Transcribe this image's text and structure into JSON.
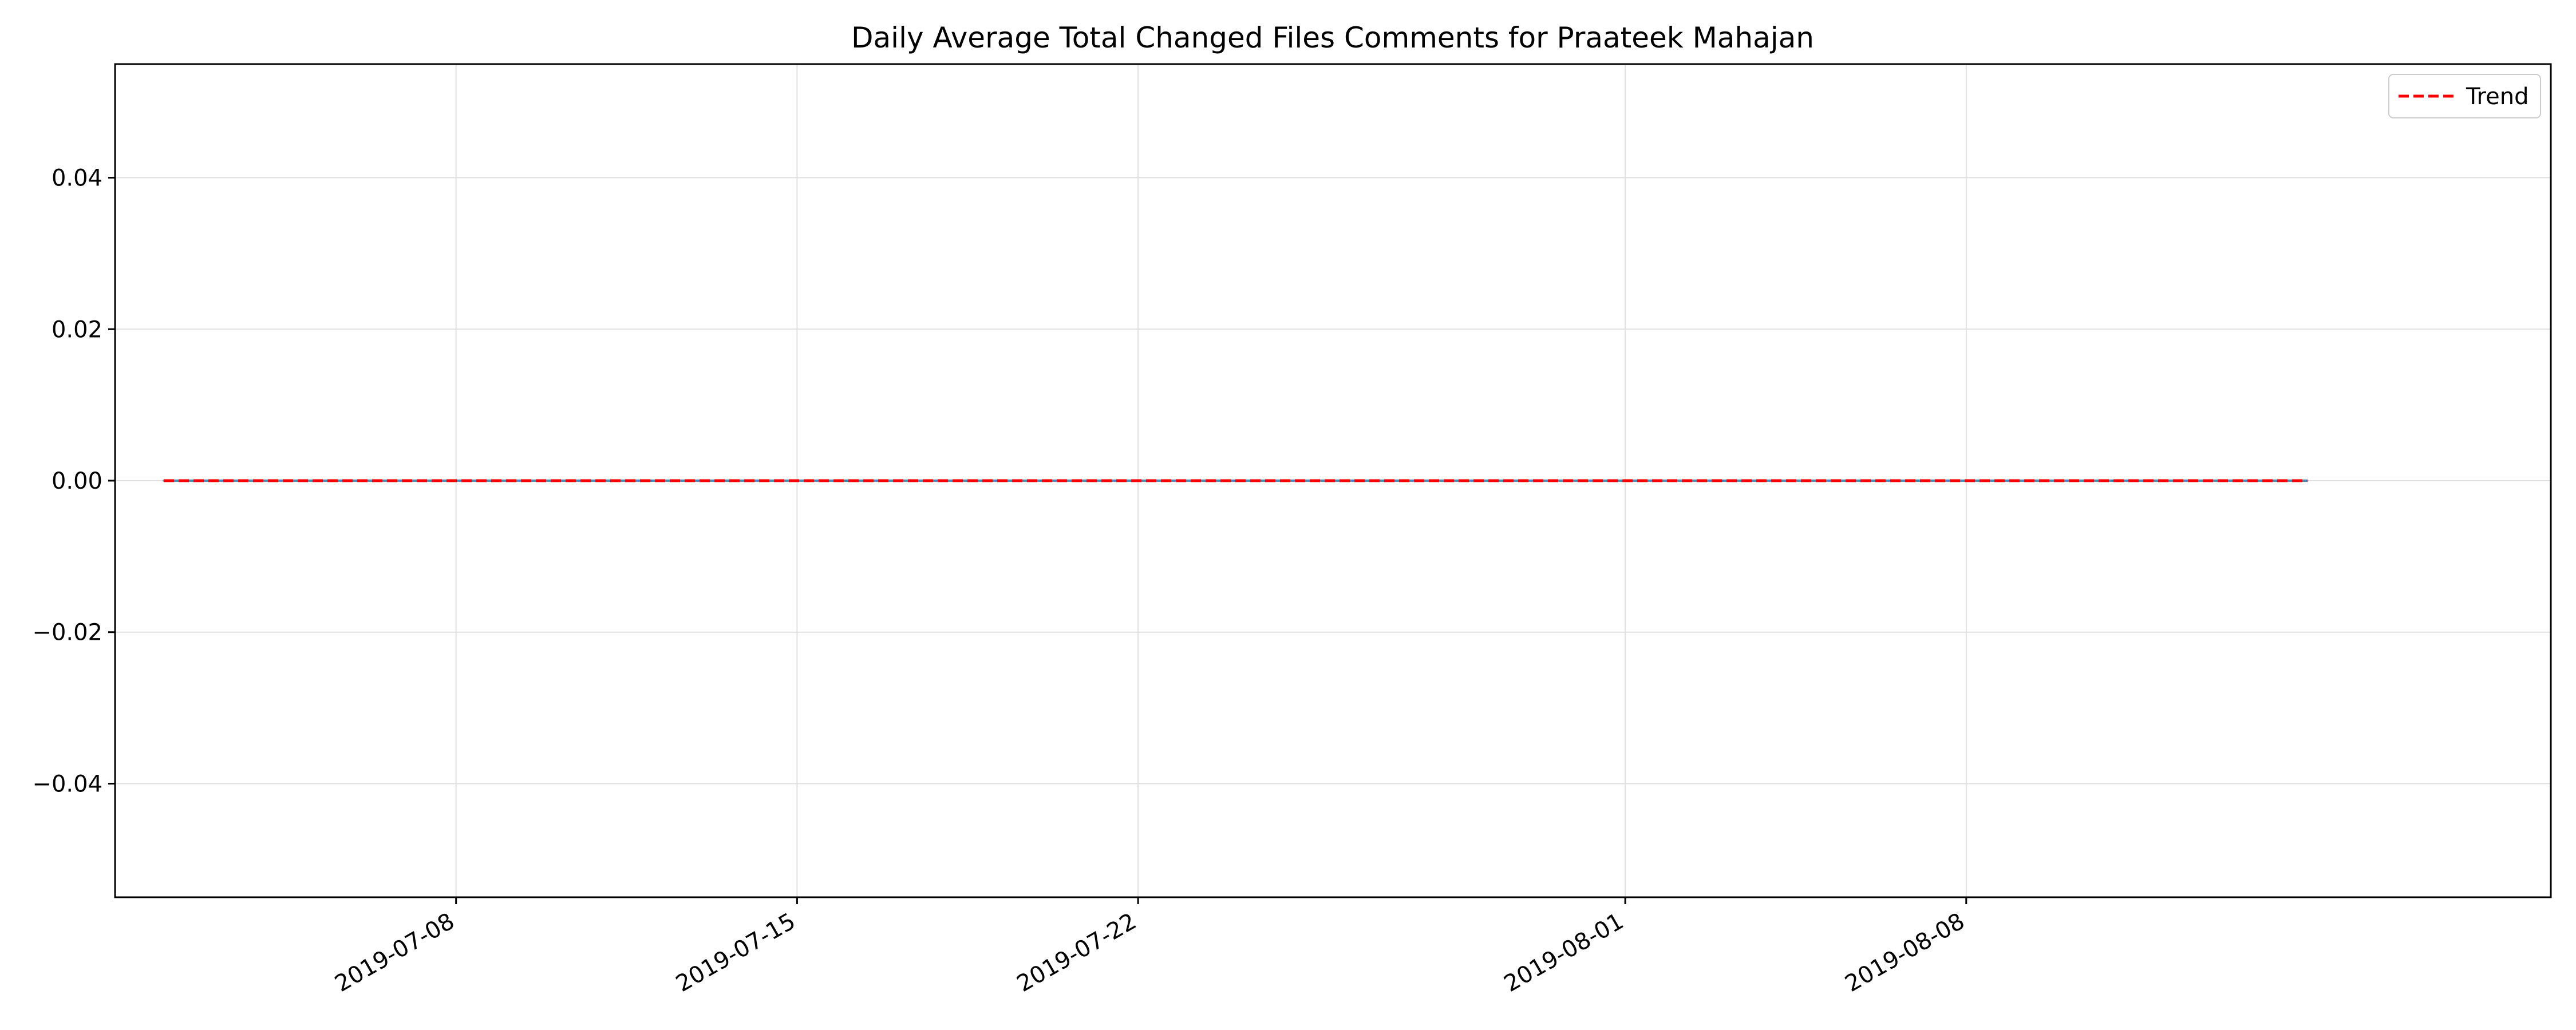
{
  "chart_data": {
    "type": "line",
    "title": "Daily Average Total Changed Files Comments for Praateek Mahajan",
    "xlabel": "",
    "ylabel": "",
    "x": [
      "2019-07-02",
      "2019-07-04",
      "2019-07-06",
      "2019-07-08",
      "2019-07-10",
      "2019-07-12",
      "2019-07-14",
      "2019-07-16",
      "2019-07-18",
      "2019-07-20",
      "2019-07-22",
      "2019-07-24",
      "2019-07-26",
      "2019-07-28",
      "2019-07-30",
      "2019-08-01",
      "2019-08-03",
      "2019-08-05",
      "2019-08-07",
      "2019-08-09",
      "2019-08-11",
      "2019-08-13",
      "2019-08-15"
    ],
    "series": [
      {
        "values": [
          0,
          0,
          0,
          0,
          0,
          0,
          0,
          0,
          0,
          0,
          0,
          0,
          0,
          0,
          0,
          0,
          0,
          0,
          0,
          0,
          0,
          0,
          0
        ],
        "color": "#1f77b4"
      },
      {
        "name": "Trend",
        "values": [
          0,
          0,
          0,
          0,
          0,
          0,
          0,
          0,
          0,
          0,
          0,
          0,
          0,
          0,
          0,
          0,
          0,
          0,
          0,
          0,
          0,
          0,
          0
        ],
        "color": "#ff0000",
        "style": "dashed"
      }
    ],
    "xticks": [
      "2019-07-08",
      "2019-07-15",
      "2019-07-22",
      "2019-08-01",
      "2019-08-08"
    ],
    "xlim": [
      "2019-07-01",
      "2019-08-20"
    ],
    "yticks": [
      0.04,
      0.02,
      0.0,
      -0.02,
      -0.04
    ],
    "ytick_labels": [
      "0.04",
      "0.02",
      "0.00",
      "−0.02",
      "−0.04"
    ],
    "ylim": [
      -0.055,
      0.055
    ],
    "grid": true,
    "legend": {
      "position": "top-right",
      "entries": [
        "Trend"
      ]
    }
  }
}
